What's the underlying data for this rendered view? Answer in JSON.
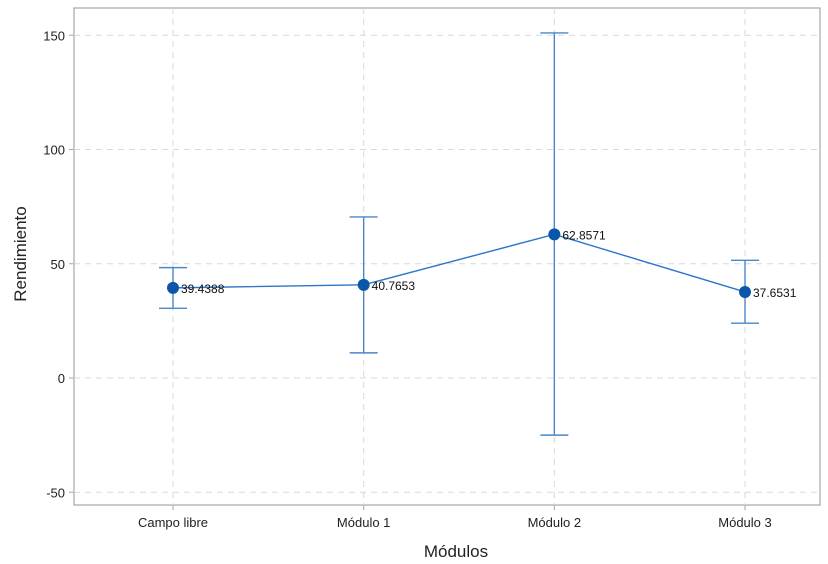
{
  "chart_data": {
    "type": "line",
    "title": "",
    "xlabel": "Módulos",
    "ylabel": "Rendimiento",
    "categories": [
      "Campo libre",
      "Módulo 1",
      "Módulo 2",
      "Módulo 3"
    ],
    "series": [
      {
        "values": [
          39.4388,
          40.7653,
          62.8571,
          37.6531
        ],
        "value_labels": [
          "39.4388",
          "40.7653",
          "62.8571",
          "37.6531"
        ],
        "error_low": [
          30.5,
          11.0,
          -25.0,
          24.0
        ],
        "error_high": [
          48.3,
          70.5,
          151.0,
          51.5
        ]
      }
    ],
    "ylim": [
      -55,
      160
    ],
    "yticks": [
      -50,
      0,
      50,
      100,
      150
    ],
    "ytick_labels": [
      "-50",
      "0",
      "50",
      "100",
      "150"
    ],
    "grid": true,
    "legend": "none",
    "colors": {
      "line": "#2e75c9",
      "marker": "#0a56a8",
      "errorbar": "#4a86c8",
      "grid": "#d9d9d9",
      "frame": "#a6a6a6"
    }
  }
}
